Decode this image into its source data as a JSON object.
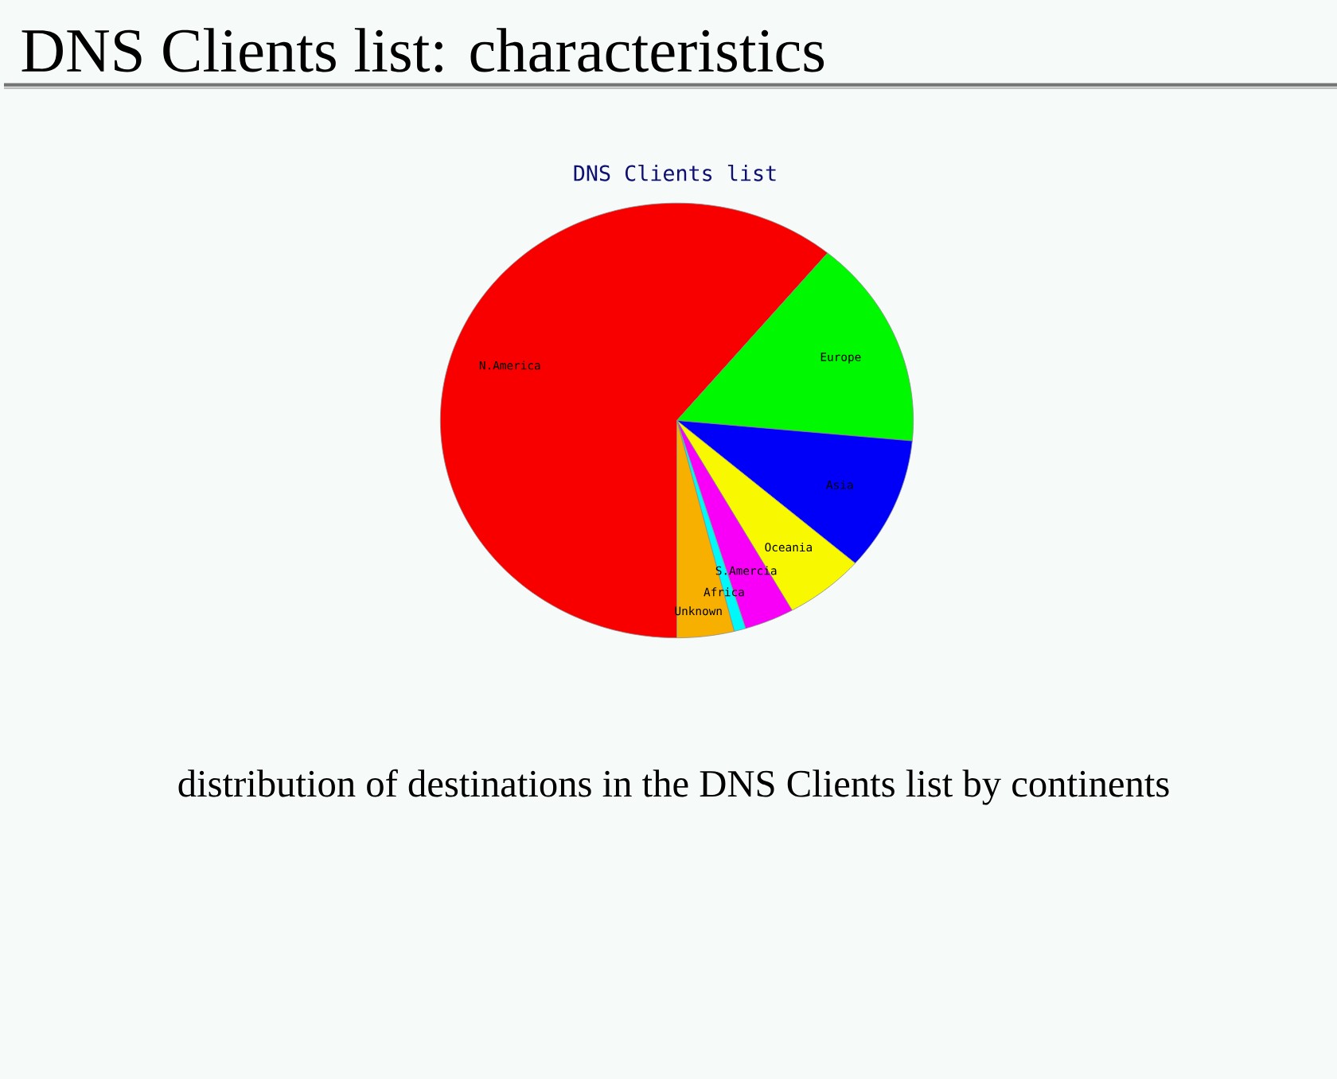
{
  "chart_data": {
    "type": "pie",
    "title": "DNS Clients list: characteristics",
    "subtitle": "DNS Clients list",
    "categories": [
      "N.America",
      "Europe",
      "Asia",
      "Oceania",
      "S.Amercia",
      "Africa",
      "Unknown"
    ],
    "values": [
      61.0,
      15.5,
      9.9,
      5.5,
      3.4,
      0.8,
      3.9
    ],
    "colors": [
      "#f80000",
      "#00f800",
      "#0000f8",
      "#f8f800",
      "#f800f8",
      "#00f8f8",
      "#f8b000"
    ],
    "annotations": [
      "distribution of destinations in the DNS Clients list by continents"
    ]
  }
}
